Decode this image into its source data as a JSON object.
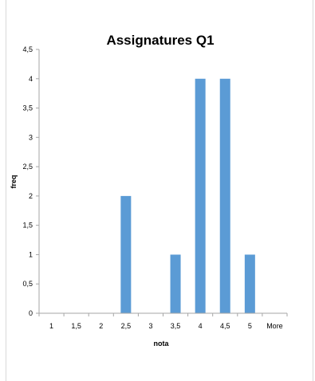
{
  "chart_data": {
    "type": "bar",
    "title": "Assignatures Q1",
    "xlabel": "nota",
    "ylabel": "freq",
    "categories": [
      "1",
      "1,5",
      "2",
      "2,5",
      "3",
      "3,5",
      "4",
      "4,5",
      "5",
      "More"
    ],
    "values": [
      0,
      0,
      0,
      2,
      0,
      1,
      4,
      4,
      1,
      0
    ],
    "ylim": [
      0,
      4.5
    ],
    "yticks": [
      "0",
      "0,5",
      "1",
      "1,5",
      "2",
      "2,5",
      "3",
      "3,5",
      "4",
      "4,5"
    ],
    "grid": false,
    "legend": "none",
    "bar_color": "#5b9bd5"
  }
}
